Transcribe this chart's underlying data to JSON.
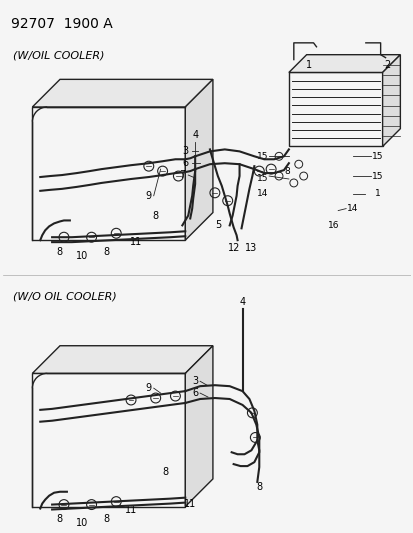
{
  "title": "92707  1900 A",
  "background_color": "#f5f5f5",
  "line_color": "#222222",
  "text_color": "#000000",
  "fig_width": 4.14,
  "fig_height": 5.33,
  "dpi": 100,
  "top_label": "(W/OIL COOLER)",
  "bottom_label": "(W/O OIL COOLER)"
}
